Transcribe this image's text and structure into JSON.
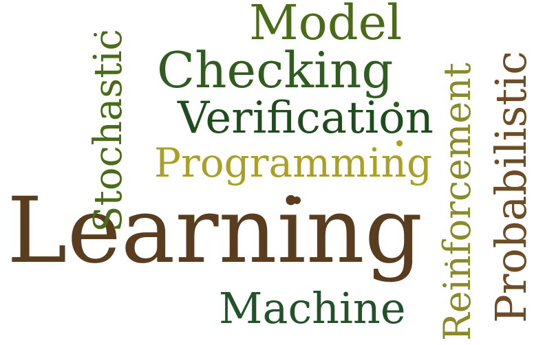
{
  "word_cloud": {
    "words": {
      "learning": {
        "text": "Learning",
        "color": "#5a3c1e"
      },
      "programming": {
        "text": "Programming",
        "color": "#a9a025"
      },
      "verification": {
        "text": "Verification",
        "color": "#1f4c1c"
      },
      "checking": {
        "text": "Checking",
        "color": "#2f5c1f"
      },
      "model": {
        "text": "Model",
        "color": "#4a6b18"
      },
      "stochastic": {
        "text": "Stochastic",
        "color": "#4a6b18"
      },
      "machine": {
        "text": "Machine",
        "color": "#22522a"
      },
      "reinforcement": {
        "text": "Reinforcement",
        "color": "#8a8a2a"
      },
      "probabilistic": {
        "text": "Probabilistic",
        "color": "#6e4c26"
      }
    },
    "accent_dots": [
      {
        "color": "#5a3c1e"
      },
      {
        "color": "#a9a025"
      },
      {
        "color": "#8a8a2a"
      },
      {
        "color": "#4a6b18"
      },
      {
        "color": "#6e4c26"
      }
    ]
  }
}
